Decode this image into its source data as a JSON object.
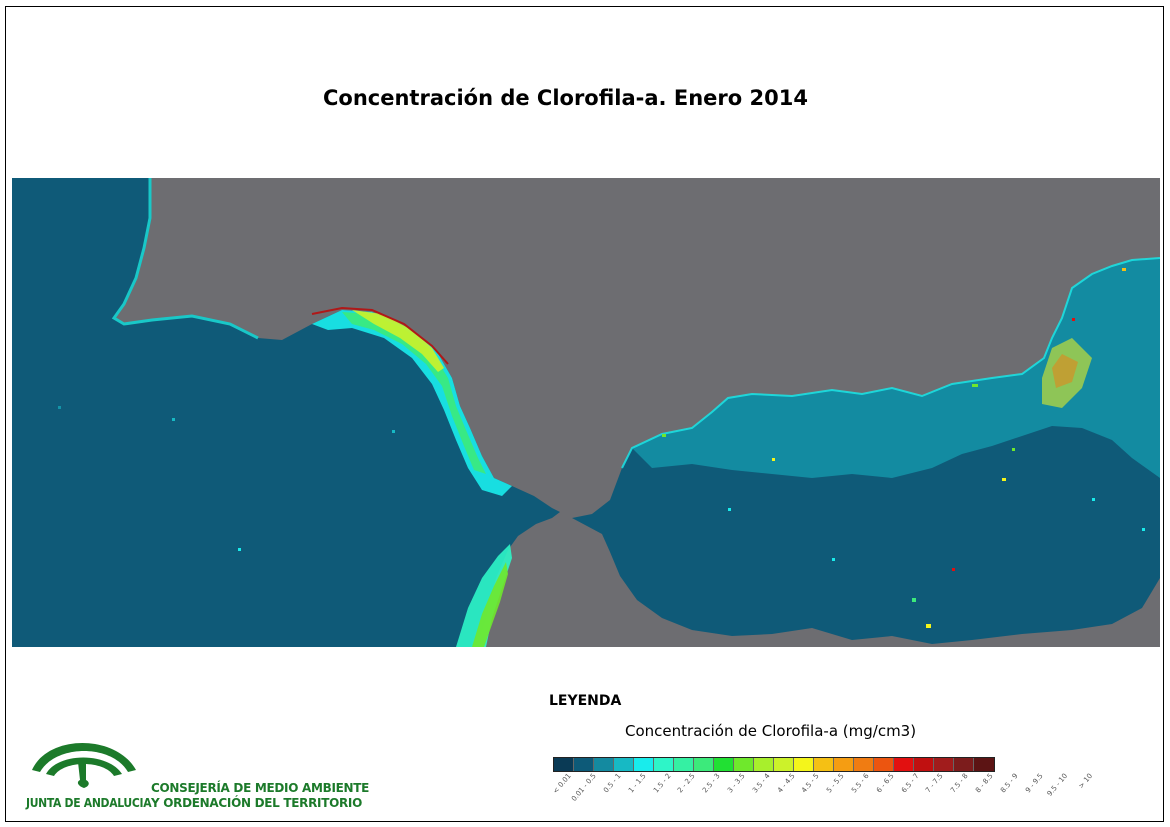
{
  "title": "Concentración de Clorofila-a. Enero 2014",
  "map": {
    "land_color": "#6d6d71",
    "sea_color": "#0f5a78",
    "sea_mid_color": "#1494a8",
    "coast_colors": [
      "#18c8c8",
      "#2de9a8",
      "#37f07a",
      "#9ff030",
      "#f3f01a",
      "#f0a010",
      "#d02010",
      "#7a1010"
    ]
  },
  "legend": {
    "heading": "LEYENDA",
    "subtitle": "Concentración de Clorofila-a (mg/cm3)",
    "classes": [
      {
        "label": "< 0.01",
        "color": "#0a3a55"
      },
      {
        "label": "0.01 - 0.5",
        "color": "#0d5a78"
      },
      {
        "label": "0.5 - 1",
        "color": "#148aa0"
      },
      {
        "label": "1 - 1.5",
        "color": "#17b9c4"
      },
      {
        "label": "1.5 - 2",
        "color": "#19ecec"
      },
      {
        "label": "2 - 2.5",
        "color": "#2ef5c8"
      },
      {
        "label": "2.5 - 3",
        "color": "#35f0a3"
      },
      {
        "label": "3 - 3.5",
        "color": "#3cea7b"
      },
      {
        "label": "3.5 - 4",
        "color": "#21e033"
      },
      {
        "label": "4 - 4.5",
        "color": "#6fe82c"
      },
      {
        "label": "4.5 - 5",
        "color": "#a8ef2c"
      },
      {
        "label": "5 - 5.5",
        "color": "#ccf22a"
      },
      {
        "label": "5.5 - 6",
        "color": "#f4f51b"
      },
      {
        "label": "6 - 6.5",
        "color": "#f5c014"
      },
      {
        "label": "6.5 - 7",
        "color": "#f59d12"
      },
      {
        "label": "7 - 7.5",
        "color": "#f07c12"
      },
      {
        "label": "7.5 - 8",
        "color": "#ec5510"
      },
      {
        "label": "8 - 8.5",
        "color": "#e21010"
      },
      {
        "label": "8.5 - 9",
        "color": "#c01010"
      },
      {
        "label": "9 - 9.5",
        "color": "#a11c1c"
      },
      {
        "label": "9.5 - 10",
        "color": "#7c1c1c"
      },
      {
        "label": "> 10",
        "color": "#5c1414"
      }
    ]
  },
  "logo": {
    "brand": "JUNTA DE ANDALUCIA",
    "brand_color": "#1c7a2a"
  },
  "department": {
    "line1": "CONSEJERÍA DE MEDIO AMBIENTE",
    "line2": "Y ORDENACIÓN DEL TERRITORIO"
  }
}
